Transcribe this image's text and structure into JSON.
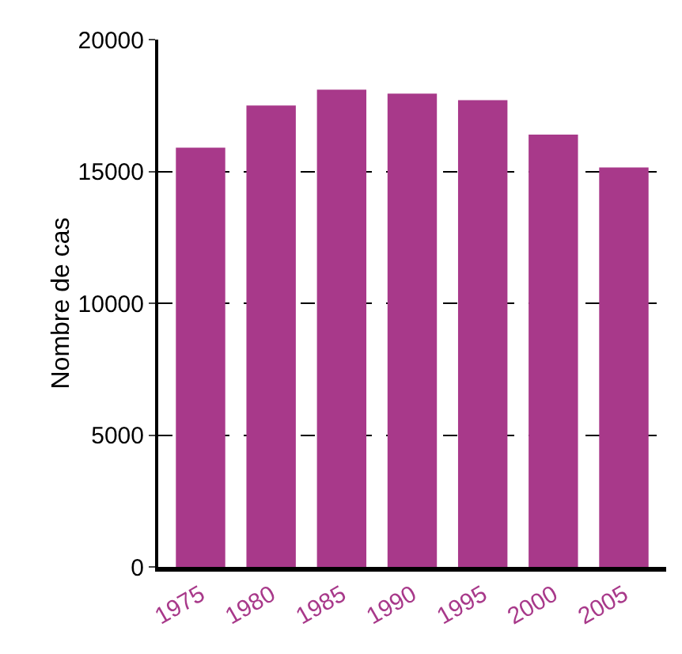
{
  "chart_data": {
    "type": "bar",
    "ylabel": "Nombre de cas",
    "categories": [
      "1975",
      "1980",
      "1985",
      "1990",
      "1995",
      "2000",
      "2005"
    ],
    "values": [
      15900,
      17500,
      18100,
      17950,
      17700,
      16400,
      15150
    ],
    "color": "#a8398a",
    "ylim": [
      0,
      20000
    ],
    "yticks": [
      0,
      5000,
      10000,
      15000,
      20000
    ],
    "grid": "y"
  }
}
